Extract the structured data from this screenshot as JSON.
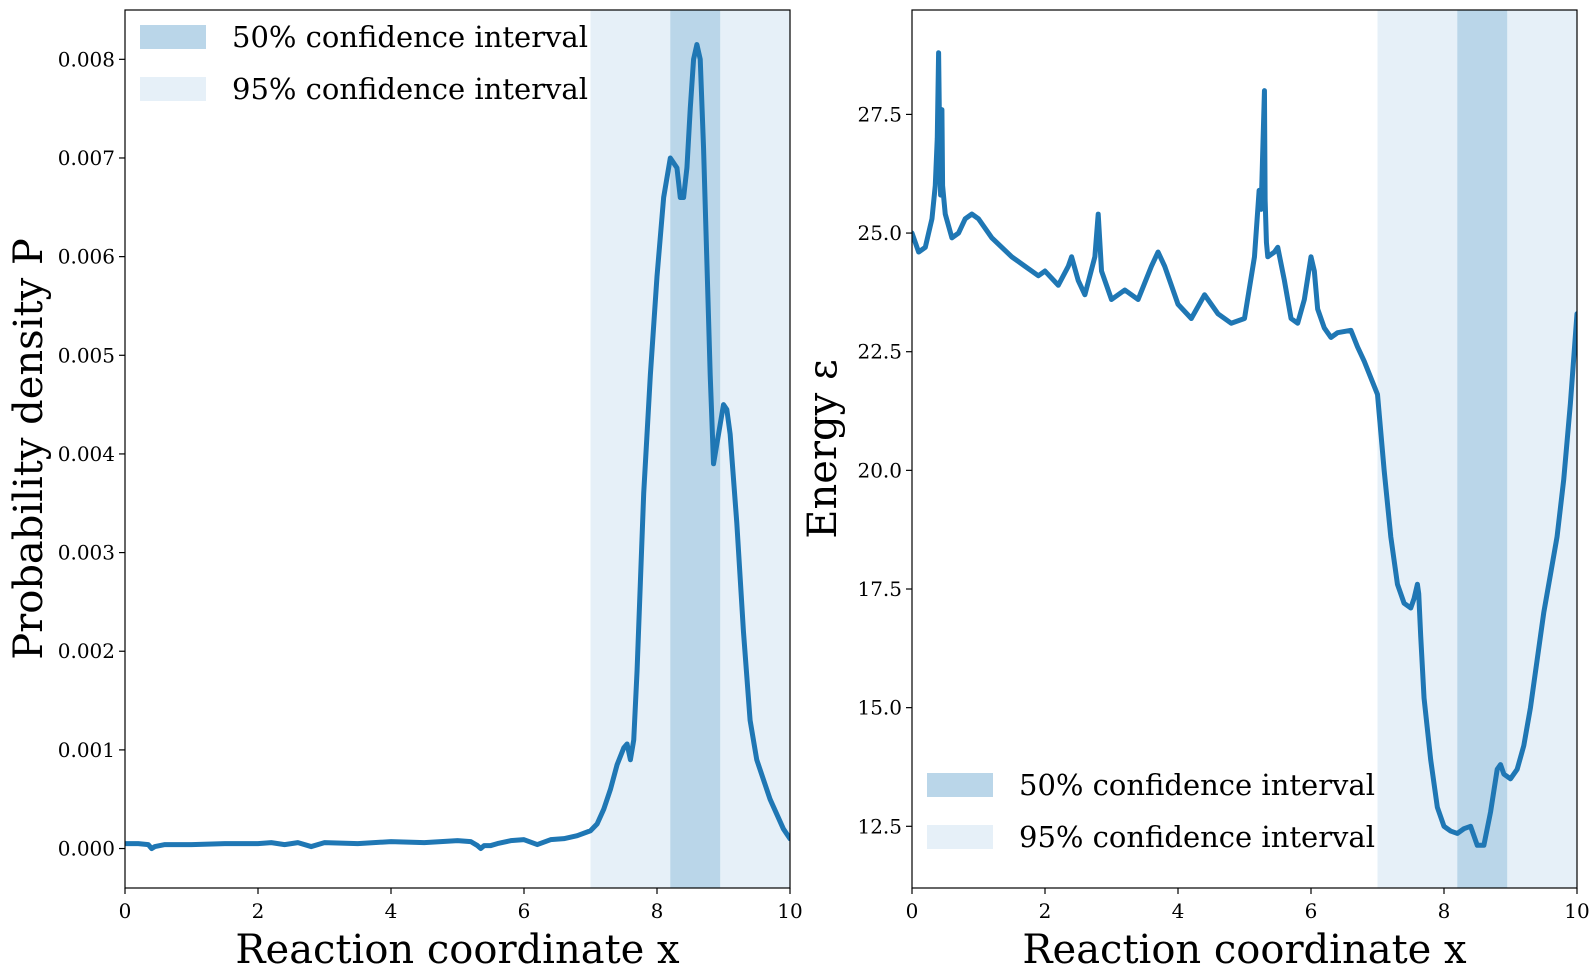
{
  "colors": {
    "line": "#1f77b4",
    "ci50": "#bad6e9",
    "ci95": "#e6f0f8"
  },
  "chart_data": [
    {
      "type": "line",
      "xlabel": "Reaction coordinate x",
      "ylabel": "Probability density P",
      "xlim": [
        0,
        10
      ],
      "ylim": [
        -0.0004,
        0.0085
      ],
      "xticks": [
        0,
        2,
        4,
        6,
        8,
        10
      ],
      "xtick_labels": [
        "0",
        "2",
        "4",
        "6",
        "8",
        "10"
      ],
      "yticks": [
        0.0,
        0.001,
        0.002,
        0.003,
        0.004,
        0.005,
        0.006,
        0.007,
        0.008
      ],
      "ytick_labels": [
        "0.000",
        "0.001",
        "0.002",
        "0.003",
        "0.004",
        "0.005",
        "0.006",
        "0.007",
        "0.008"
      ],
      "grid": false,
      "legend_position": "top-left",
      "bands": [
        {
          "name": "50% confidence interval",
          "x0": 8.2,
          "x1": 8.95,
          "color_key": "ci50"
        },
        {
          "name": "95% confidence interval",
          "x0": 7.0,
          "x1": 10.0,
          "color_key": "ci95"
        }
      ],
      "series": [
        {
          "x": [
            0,
            0.2,
            0.35,
            0.4,
            0.45,
            0.6,
            0.8,
            1.0,
            1.5,
            2.0,
            2.2,
            2.4,
            2.6,
            2.8,
            3.0,
            3.5,
            4.0,
            4.5,
            5.0,
            5.2,
            5.3,
            5.35,
            5.4,
            5.5,
            5.6,
            5.8,
            6.0,
            6.2,
            6.4,
            6.6,
            6.8,
            7.0,
            7.1,
            7.2,
            7.3,
            7.4,
            7.5,
            7.55,
            7.6,
            7.65,
            7.7,
            7.75,
            7.8,
            7.9,
            8.0,
            8.1,
            8.2,
            8.3,
            8.35,
            8.4,
            8.45,
            8.5,
            8.55,
            8.6,
            8.65,
            8.7,
            8.8,
            8.85,
            8.9,
            9.0,
            9.05,
            9.1,
            9.2,
            9.3,
            9.4,
            9.5,
            9.7,
            9.9,
            10.0
          ],
          "y": [
            5e-05,
            5e-05,
            4e-05,
            0.0,
            2e-05,
            4e-05,
            4e-05,
            4e-05,
            5e-05,
            5e-05,
            6e-05,
            4e-05,
            6e-05,
            2e-05,
            6e-05,
            5e-05,
            7e-05,
            6e-05,
            8e-05,
            7e-05,
            3e-05,
            0.0,
            3e-05,
            3e-05,
            5e-05,
            8e-05,
            9e-05,
            4e-05,
            9e-05,
            0.0001,
            0.00013,
            0.00018,
            0.00025,
            0.0004,
            0.0006,
            0.00085,
            0.00102,
            0.00106,
            0.0009,
            0.0011,
            0.0018,
            0.0027,
            0.0036,
            0.0048,
            0.0058,
            0.0066,
            0.007,
            0.0069,
            0.0066,
            0.0066,
            0.0069,
            0.0075,
            0.008,
            0.00815,
            0.008,
            0.0071,
            0.0048,
            0.0039,
            0.0041,
            0.0045,
            0.00445,
            0.0042,
            0.0033,
            0.0022,
            0.0013,
            0.0009,
            0.0005,
            0.0002,
            0.0001
          ]
        }
      ]
    },
    {
      "type": "line",
      "xlabel": "Reaction coordinate x",
      "ylabel": "Energy ε",
      "xlim": [
        0,
        10
      ],
      "ylim": [
        11.2,
        29.7
      ],
      "xticks": [
        0,
        2,
        4,
        6,
        8,
        10
      ],
      "xtick_labels": [
        "0",
        "2",
        "4",
        "6",
        "8",
        "10"
      ],
      "yticks": [
        12.5,
        15.0,
        17.5,
        20.0,
        22.5,
        25.0,
        27.5
      ],
      "ytick_labels": [
        "12.5",
        "15.0",
        "17.5",
        "20.0",
        "22.5",
        "25.0",
        "27.5"
      ],
      "grid": false,
      "legend_position": "bottom-left",
      "bands": [
        {
          "name": "50% confidence interval",
          "x0": 8.2,
          "x1": 8.95,
          "color_key": "ci50"
        },
        {
          "name": "95% confidence interval",
          "x0": 7.0,
          "x1": 10.0,
          "color_key": "ci95"
        }
      ],
      "series": [
        {
          "x": [
            0,
            0.1,
            0.2,
            0.3,
            0.35,
            0.38,
            0.4,
            0.42,
            0.43,
            0.44,
            0.45,
            0.46,
            0.5,
            0.6,
            0.7,
            0.8,
            0.9,
            1.0,
            1.2,
            1.5,
            1.7,
            1.9,
            2.0,
            2.2,
            2.35,
            2.4,
            2.5,
            2.6,
            2.75,
            2.8,
            2.85,
            3.0,
            3.2,
            3.4,
            3.6,
            3.7,
            3.8,
            4.0,
            4.2,
            4.4,
            4.6,
            4.8,
            5.0,
            5.15,
            5.22,
            5.25,
            5.27,
            5.3,
            5.31,
            5.33,
            5.35,
            5.45,
            5.5,
            5.6,
            5.7,
            5.8,
            5.9,
            6.0,
            6.05,
            6.1,
            6.2,
            6.3,
            6.4,
            6.6,
            6.7,
            6.8,
            7.0,
            7.1,
            7.2,
            7.3,
            7.4,
            7.5,
            7.55,
            7.6,
            7.62,
            7.65,
            7.7,
            7.8,
            7.9,
            8.0,
            8.1,
            8.2,
            8.3,
            8.4,
            8.5,
            8.6,
            8.7,
            8.8,
            8.85,
            8.9,
            9.0,
            9.1,
            9.2,
            9.3,
            9.4,
            9.5,
            9.6,
            9.7,
            9.8,
            9.9,
            10.0
          ],
          "y": [
            25.0,
            24.6,
            24.7,
            25.3,
            26.0,
            27.0,
            28.8,
            26.5,
            25.8,
            26.2,
            27.6,
            26.0,
            25.4,
            24.9,
            25.0,
            25.3,
            25.4,
            25.3,
            24.9,
            24.5,
            24.3,
            24.1,
            24.2,
            23.9,
            24.3,
            24.5,
            24.0,
            23.7,
            24.5,
            25.4,
            24.2,
            23.6,
            23.8,
            23.6,
            24.3,
            24.6,
            24.3,
            23.5,
            23.2,
            23.7,
            23.3,
            23.1,
            23.2,
            24.5,
            25.9,
            25.5,
            26.5,
            28.0,
            25.7,
            24.8,
            24.5,
            24.6,
            24.7,
            24.0,
            23.2,
            23.1,
            23.6,
            24.5,
            24.2,
            23.4,
            23.0,
            22.8,
            22.9,
            22.95,
            22.6,
            22.3,
            21.6,
            20.0,
            18.6,
            17.6,
            17.2,
            17.1,
            17.3,
            17.6,
            17.4,
            16.5,
            15.2,
            13.9,
            12.9,
            12.5,
            12.4,
            12.35,
            12.45,
            12.5,
            12.1,
            12.1,
            12.8,
            13.7,
            13.8,
            13.6,
            13.5,
            13.7,
            14.2,
            15.0,
            16.0,
            17.0,
            17.8,
            18.6,
            19.8,
            21.4,
            23.3
          ]
        }
      ]
    }
  ]
}
